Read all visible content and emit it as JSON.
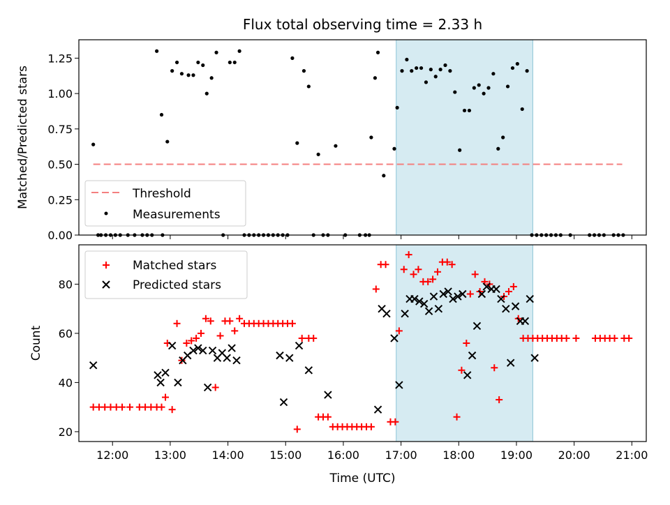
{
  "figure": {
    "title": "Flux total observing time = 2.33 h",
    "xlabel": "Time (UTC)"
  },
  "chart_data": [
    {
      "type": "scatter",
      "ylabel": "Matched/Predicted stars",
      "xlim": [
        "11:25",
        "21:15"
      ],
      "ylim": [
        0,
        1.38
      ],
      "yticks": [
        "0.00",
        "0.25",
        "0.50",
        "0.75",
        "1.00",
        "1.25"
      ],
      "grid": false,
      "legend_position": "lower-left",
      "shaded_region": [
        "16:55",
        "19:17"
      ],
      "threshold": {
        "name": "Threshold",
        "value": 0.5,
        "x_range": [
          "11:40",
          "20:50"
        ],
        "color": "#f47f7f",
        "style": "dashed"
      },
      "series": [
        {
          "name": "Measurements",
          "marker": "dot",
          "color": "#000000",
          "x": [
            "11:40",
            "11:45",
            "11:48",
            "11:53",
            "11:58",
            "12:03",
            "12:08",
            "12:16",
            "12:23",
            "12:31",
            "12:36",
            "12:41",
            "12:46",
            "12:51",
            "12:52",
            "12:57",
            "13:02",
            "13:07",
            "13:12",
            "13:19",
            "13:24",
            "13:29",
            "13:34",
            "13:38",
            "13:43",
            "13:48",
            "13:55",
            "14:02",
            "14:07",
            "14:12",
            "14:17",
            "14:22",
            "14:27",
            "14:32",
            "14:37",
            "14:42",
            "14:47",
            "14:52",
            "14:57",
            "15:02",
            "15:07",
            "15:12",
            "15:19",
            "15:24",
            "15:29",
            "15:34",
            "15:39",
            "15:44",
            "15:52",
            "16:02",
            "16:17",
            "16:23",
            "16:27",
            "16:29",
            "16:33",
            "16:36",
            "16:42",
            "16:53",
            "16:56",
            "17:01",
            "17:06",
            "17:11",
            "17:16",
            "17:21",
            "17:26",
            "17:31",
            "17:36",
            "17:41",
            "17:46",
            "17:51",
            "17:56",
            "18:01",
            "18:06",
            "18:11",
            "18:16",
            "18:21",
            "18:26",
            "18:31",
            "18:36",
            "18:41",
            "18:46",
            "18:51",
            "18:56",
            "19:01",
            "19:06",
            "19:11",
            "19:16",
            "19:21",
            "19:26",
            "19:31",
            "19:36",
            "19:41",
            "19:46",
            "19:56",
            "20:16",
            "20:21",
            "20:26",
            "20:31",
            "20:41",
            "20:46",
            "20:51"
          ],
          "y": [
            0.64,
            0.0,
            0.0,
            0.0,
            0.0,
            0.0,
            0.0,
            0.0,
            0.0,
            0.0,
            0.0,
            0.0,
            1.3,
            0.85,
            0.0,
            0.66,
            1.16,
            1.22,
            1.14,
            1.13,
            1.13,
            1.22,
            1.2,
            1.0,
            1.11,
            1.29,
            0.0,
            1.22,
            1.22,
            1.3,
            0.0,
            0.0,
            0.0,
            0.0,
            0.0,
            0.0,
            0.0,
            0.0,
            0.0,
            0.0,
            1.25,
            0.65,
            1.16,
            1.05,
            0.0,
            0.57,
            0.0,
            0.0,
            0.63,
            0.0,
            0.0,
            0.0,
            0.0,
            0.69,
            1.11,
            1.29,
            0.42,
            0.61,
            0.9,
            1.16,
            1.24,
            1.16,
            1.18,
            1.18,
            1.08,
            1.17,
            1.12,
            1.17,
            1.2,
            1.16,
            1.01,
            0.6,
            0.88,
            0.88,
            1.04,
            1.06,
            1.0,
            1.04,
            1.14,
            0.61,
            0.69,
            1.05,
            1.18,
            1.21,
            0.89,
            1.16,
            0.0,
            0.0,
            0.0,
            0.0,
            0.0,
            0.0,
            0.0,
            0.0,
            0.0,
            0.0,
            0.0,
            0.0,
            0.0,
            0.0,
            0.0
          ]
        }
      ]
    },
    {
      "type": "scatter",
      "ylabel": "Count",
      "xlim": [
        "11:25",
        "21:15"
      ],
      "ylim": [
        16,
        96
      ],
      "yticks": [
        "20",
        "40",
        "60",
        "80"
      ],
      "xticks": [
        "12:00",
        "13:00",
        "14:00",
        "15:00",
        "16:00",
        "17:00",
        "18:00",
        "19:00",
        "20:00",
        "21:00"
      ],
      "grid": false,
      "legend_position": "upper-left",
      "shaded_region": [
        "16:55",
        "19:17"
      ],
      "series": [
        {
          "name": "Matched stars",
          "marker": "plus",
          "color": "#ff0000",
          "x": [
            "11:40",
            "11:46",
            "11:52",
            "11:58",
            "12:04",
            "12:10",
            "12:18",
            "12:28",
            "12:34",
            "12:40",
            "12:46",
            "12:51",
            "12:55",
            "12:57",
            "13:02",
            "13:07",
            "13:12",
            "13:17",
            "13:22",
            "13:27",
            "13:32",
            "13:37",
            "13:42",
            "13:47",
            "13:52",
            "13:57",
            "14:02",
            "14:07",
            "14:12",
            "14:17",
            "14:22",
            "14:27",
            "14:32",
            "14:37",
            "14:42",
            "14:47",
            "14:52",
            "14:57",
            "15:02",
            "15:07",
            "15:12",
            "15:17",
            "15:24",
            "15:29",
            "15:34",
            "15:39",
            "15:44",
            "15:49",
            "15:54",
            "15:59",
            "16:04",
            "16:09",
            "16:14",
            "16:19",
            "16:24",
            "16:29",
            "16:34",
            "16:39",
            "16:44",
            "16:49",
            "16:54",
            "16:58",
            "17:03",
            "17:08",
            "17:13",
            "17:18",
            "17:23",
            "17:28",
            "17:33",
            "17:38",
            "17:43",
            "17:48",
            "17:53",
            "17:58",
            "18:03",
            "18:08",
            "18:12",
            "18:17",
            "18:22",
            "18:27",
            "18:32",
            "18:37",
            "18:42",
            "18:47",
            "18:52",
            "18:57",
            "19:02",
            "19:07",
            "19:12",
            "19:17",
            "19:22",
            "19:27",
            "19:32",
            "19:37",
            "19:42",
            "19:47",
            "19:52",
            "20:02",
            "20:22",
            "20:27",
            "20:32",
            "20:37",
            "20:42",
            "20:52",
            "20:57"
          ],
          "y": [
            30,
            30,
            30,
            30,
            30,
            30,
            30,
            30,
            30,
            30,
            30,
            30,
            34,
            56,
            29,
            64,
            49,
            56,
            57,
            58,
            60,
            66,
            65,
            38,
            59,
            65,
            65,
            61,
            66,
            64,
            64,
            64,
            64,
            64,
            64,
            64,
            64,
            64,
            64,
            64,
            21,
            58,
            58,
            58,
            26,
            26,
            26,
            22,
            22,
            22,
            22,
            22,
            22,
            22,
            22,
            22,
            78,
            88,
            88,
            24,
            24,
            61,
            86,
            92,
            84,
            86,
            81,
            81,
            82,
            85,
            89,
            89,
            88,
            26,
            45,
            56,
            76,
            84,
            77,
            81,
            80,
            46,
            33,
            75,
            77,
            79,
            66,
            58,
            58,
            58,
            58,
            58,
            58,
            58,
            58,
            58,
            58,
            58,
            58,
            58,
            58,
            58,
            58,
            58,
            58
          ]
        },
        {
          "name": "Predicted stars",
          "marker": "x",
          "color": "#000000",
          "x": [
            "11:40",
            "12:47",
            "12:50",
            "12:55",
            "13:02",
            "13:08",
            "13:13",
            "13:18",
            "13:24",
            "13:29",
            "13:34",
            "13:39",
            "13:44",
            "13:49",
            "13:54",
            "13:59",
            "14:04",
            "14:09",
            "14:54",
            "14:58",
            "15:04",
            "15:14",
            "15:24",
            "15:44",
            "16:36",
            "16:40",
            "16:45",
            "16:53",
            "16:58",
            "17:04",
            "17:09",
            "17:14",
            "17:19",
            "17:24",
            "17:29",
            "17:34",
            "17:39",
            "17:44",
            "17:49",
            "17:54",
            "17:59",
            "18:04",
            "18:09",
            "18:14",
            "18:19",
            "18:24",
            "18:29",
            "18:34",
            "18:39",
            "18:44",
            "18:49",
            "18:54",
            "18:59",
            "19:04",
            "19:09",
            "19:14",
            "19:19"
          ],
          "y": [
            47,
            43,
            40,
            44,
            55,
            40,
            49,
            51,
            53,
            54,
            53,
            38,
            53,
            50,
            52,
            50,
            54,
            49,
            51,
            32,
            50,
            55,
            45,
            35,
            29,
            70,
            68,
            58,
            39,
            68,
            74,
            74,
            73,
            72,
            69,
            75,
            70,
            76,
            77,
            74,
            75,
            76,
            43,
            51,
            63,
            76,
            79,
            78,
            78,
            74,
            70,
            48,
            71,
            65,
            65,
            74,
            50
          ]
        }
      ]
    }
  ]
}
